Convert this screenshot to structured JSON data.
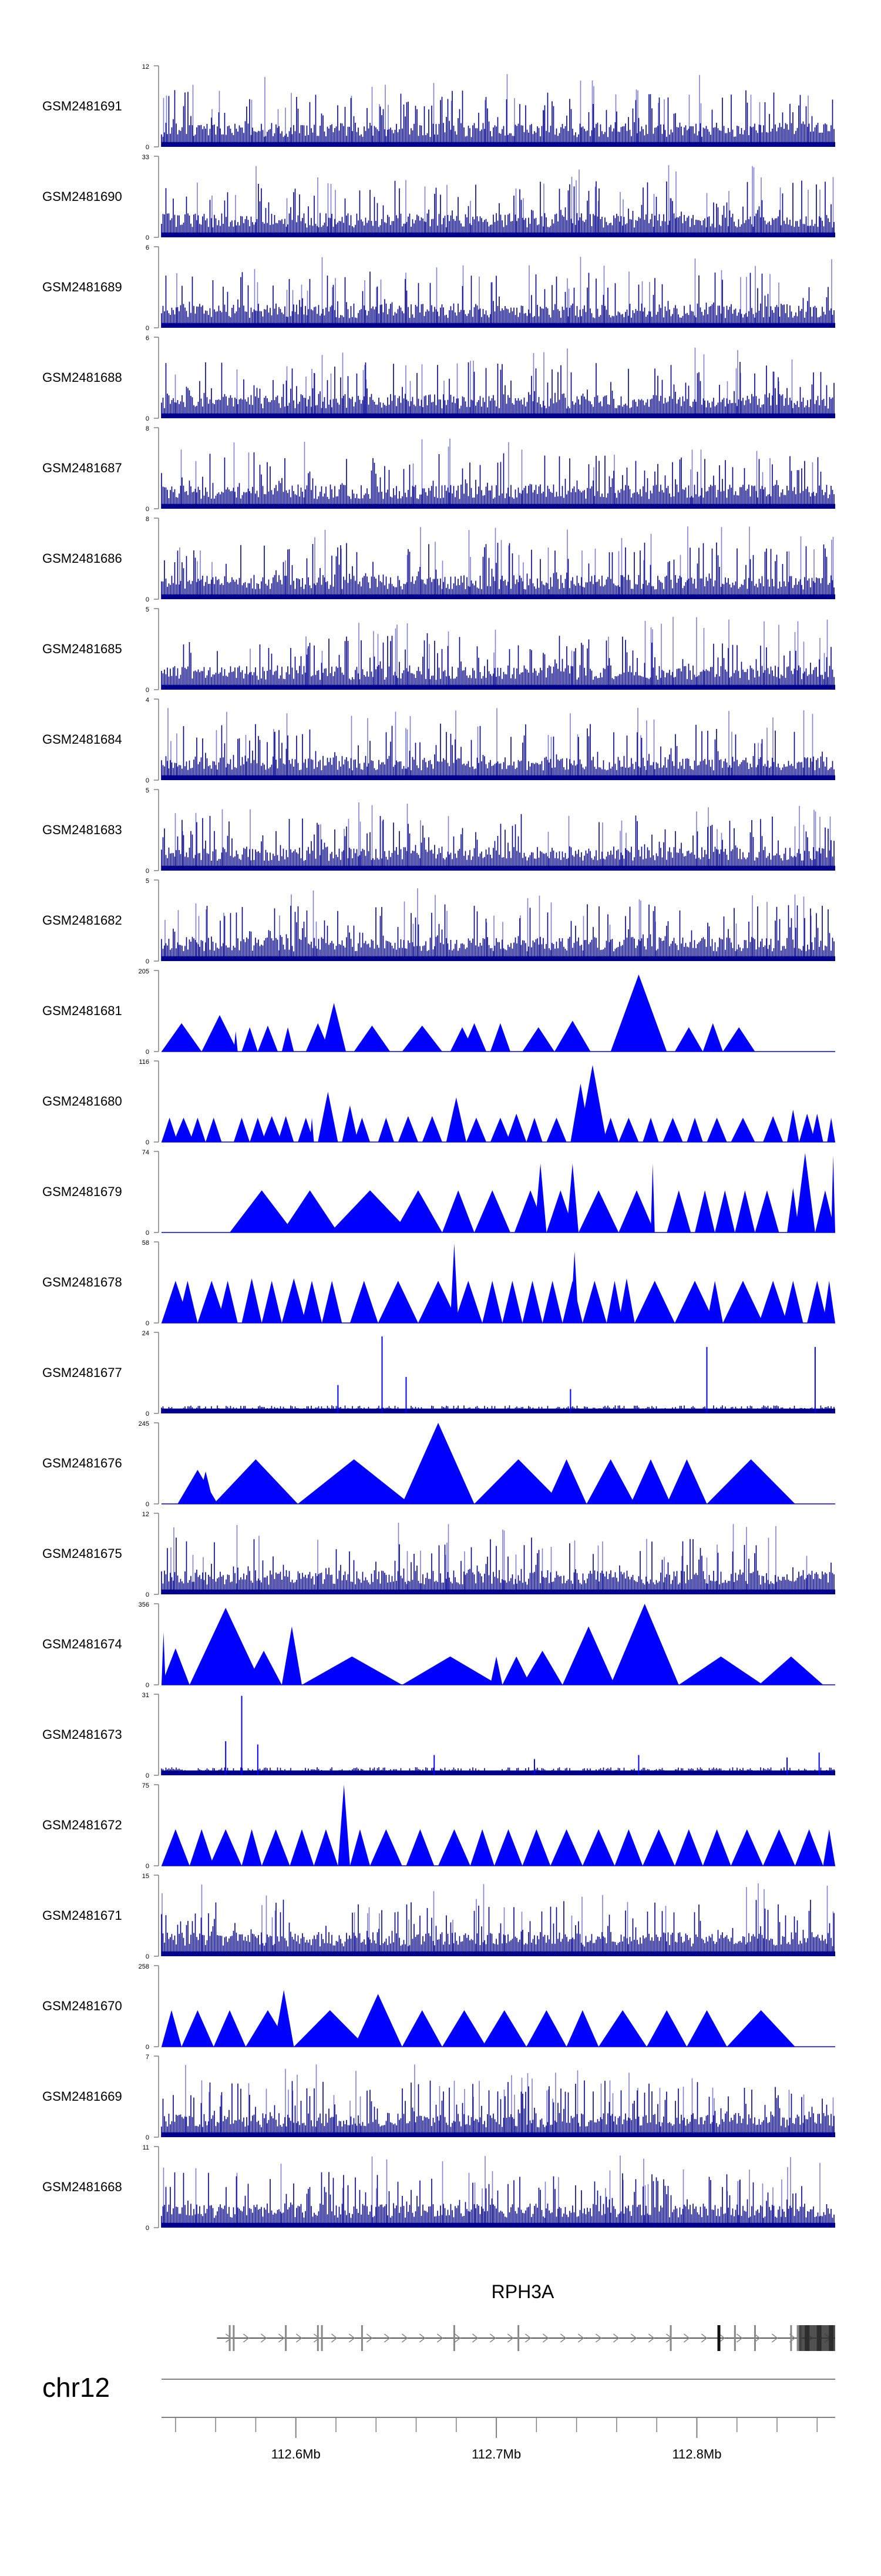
{
  "chart_data": {
    "type": "area",
    "title": "",
    "xlabel": "",
    "ylabel": "",
    "tracks": [
      {
        "name": "GSM2481691",
        "ymax": "12",
        "ymin": "0",
        "style": "spiky",
        "seed": 11
      },
      {
        "name": "GSM2481690",
        "ymax": "33",
        "ymin": "0",
        "style": "spiky",
        "seed": 12
      },
      {
        "name": "GSM2481689",
        "ymax": "6",
        "ymin": "0",
        "style": "spiky",
        "seed": 13
      },
      {
        "name": "GSM2481688",
        "ymax": "6",
        "ymin": "0",
        "style": "spiky",
        "seed": 14
      },
      {
        "name": "GSM2481687",
        "ymax": "8",
        "ymin": "0",
        "style": "spiky",
        "seed": 15
      },
      {
        "name": "GSM2481686",
        "ymax": "8",
        "ymin": "0",
        "style": "spiky",
        "seed": 16
      },
      {
        "name": "GSM2481685",
        "ymax": "5",
        "ymin": "0",
        "style": "spiky",
        "seed": 17
      },
      {
        "name": "GSM2481684",
        "ymax": "4",
        "ymin": "0",
        "style": "spiky",
        "seed": 18
      },
      {
        "name": "GSM2481683",
        "ymax": "5",
        "ymin": "0",
        "style": "spiky",
        "seed": 19
      },
      {
        "name": "GSM2481682",
        "ymax": "5",
        "ymin": "0",
        "style": "spiky",
        "seed": 20
      },
      {
        "name": "GSM2481681",
        "ymax": "205",
        "ymin": "0",
        "style": "peaks",
        "peaks": [
          [
            112.533,
            112.553,
            0.35
          ],
          [
            112.553,
            112.571,
            0.45
          ],
          [
            112.569,
            112.571,
            0.25
          ],
          [
            112.573,
            112.581,
            0.3
          ],
          [
            112.581,
            112.591,
            0.32
          ],
          [
            112.593,
            112.599,
            0.3
          ],
          [
            112.605,
            112.617,
            0.35
          ],
          [
            112.613,
            112.625,
            0.6
          ],
          [
            112.629,
            112.647,
            0.32
          ],
          [
            112.653,
            112.673,
            0.32
          ],
          [
            112.677,
            112.689,
            0.3
          ],
          [
            112.683,
            112.695,
            0.35
          ],
          [
            112.697,
            112.707,
            0.35
          ],
          [
            112.713,
            112.729,
            0.3
          ],
          [
            112.729,
            112.747,
            0.38
          ],
          [
            112.757,
            112.785,
            0.95
          ],
          [
            112.789,
            112.803,
            0.3
          ],
          [
            112.803,
            112.813,
            0.35
          ],
          [
            112.813,
            112.829,
            0.3
          ]
        ]
      },
      {
        "name": "GSM2481680",
        "ymax": "116",
        "ymin": "0",
        "style": "peaks",
        "peaks": [
          [
            112.533,
            112.541,
            0.3
          ],
          [
            112.539,
            112.549,
            0.3
          ],
          [
            112.547,
            112.555,
            0.3
          ],
          [
            112.555,
            112.563,
            0.3
          ],
          [
            112.569,
            112.577,
            0.3
          ],
          [
            112.577,
            112.585,
            0.3
          ],
          [
            112.583,
            112.593,
            0.32
          ],
          [
            112.591,
            112.599,
            0.32
          ],
          [
            112.601,
            112.609,
            0.3
          ],
          [
            112.607,
            112.609,
            0.3
          ],
          [
            112.611,
            112.621,
            0.62
          ],
          [
            112.623,
            112.631,
            0.45
          ],
          [
            112.629,
            112.637,
            0.3
          ],
          [
            112.641,
            112.649,
            0.3
          ],
          [
            112.651,
            112.661,
            0.32
          ],
          [
            112.663,
            112.673,
            0.32
          ],
          [
            112.675,
            112.685,
            0.55
          ],
          [
            112.685,
            112.695,
            0.3
          ],
          [
            112.697,
            112.707,
            0.3
          ],
          [
            112.705,
            112.715,
            0.35
          ],
          [
            112.715,
            112.723,
            0.3
          ],
          [
            112.725,
            112.735,
            0.3
          ],
          [
            112.737,
            112.747,
            0.72
          ],
          [
            112.741,
            112.755,
            0.95
          ],
          [
            112.753,
            112.761,
            0.3
          ],
          [
            112.761,
            112.771,
            0.3
          ],
          [
            112.773,
            112.781,
            0.3
          ],
          [
            112.783,
            112.793,
            0.3
          ],
          [
            112.795,
            112.803,
            0.3
          ],
          [
            112.805,
            112.815,
            0.3
          ],
          [
            112.817,
            112.829,
            0.3
          ],
          [
            112.833,
            112.843,
            0.32
          ],
          [
            112.845,
            112.851,
            0.4
          ],
          [
            112.851,
            112.859,
            0.35
          ],
          [
            112.857,
            112.863,
            0.35
          ],
          [
            112.865,
            112.869,
            0.3
          ]
        ]
      },
      {
        "name": "GSM2481679",
        "ymax": "74",
        "ymin": "0",
        "style": "peaks",
        "peaks": [
          [
            112.567,
            112.599,
            0.52
          ],
          [
            112.593,
            112.621,
            0.52
          ],
          [
            112.617,
            112.657,
            0.52
          ],
          [
            112.649,
            112.673,
            0.52
          ],
          [
            112.673,
            112.689,
            0.52
          ],
          [
            112.689,
            112.707,
            0.52
          ],
          [
            112.709,
            112.725,
            0.52
          ],
          [
            112.719,
            112.725,
            0.85
          ],
          [
            112.725,
            112.739,
            0.52
          ],
          [
            112.735,
            112.741,
            0.85
          ],
          [
            112.741,
            112.761,
            0.52
          ],
          [
            112.761,
            112.779,
            0.52
          ],
          [
            112.777,
            112.779,
            0.85
          ],
          [
            112.785,
            112.797,
            0.52
          ],
          [
            112.799,
            112.809,
            0.52
          ],
          [
            112.809,
            112.819,
            0.52
          ],
          [
            112.819,
            112.829,
            0.52
          ],
          [
            112.829,
            112.841,
            0.52
          ],
          [
            112.845,
            112.851,
            0.55
          ],
          [
            112.849,
            112.859,
            0.98
          ],
          [
            112.859,
            112.869,
            0.52
          ],
          [
            112.867,
            112.869,
            0.95
          ]
        ]
      },
      {
        "name": "GSM2481678",
        "ymax": "58",
        "ymin": "0",
        "style": "peaks",
        "peaks": [
          [
            112.533,
            112.547,
            0.52
          ],
          [
            112.541,
            112.551,
            0.52
          ],
          [
            112.551,
            112.565,
            0.52
          ],
          [
            112.561,
            112.571,
            0.52
          ],
          [
            112.573,
            112.583,
            0.55
          ],
          [
            112.583,
            112.593,
            0.52
          ],
          [
            112.593,
            112.605,
            0.55
          ],
          [
            112.603,
            112.613,
            0.52
          ],
          [
            112.613,
            112.623,
            0.52
          ],
          [
            112.627,
            112.641,
            0.52
          ],
          [
            112.641,
            112.661,
            0.52
          ],
          [
            112.661,
            112.681,
            0.52
          ],
          [
            112.677,
            112.681,
            0.98
          ],
          [
            112.679,
            112.693,
            0.52
          ],
          [
            112.693,
            112.703,
            0.52
          ],
          [
            112.703,
            112.713,
            0.52
          ],
          [
            112.713,
            112.723,
            0.52
          ],
          [
            112.723,
            112.733,
            0.52
          ],
          [
            112.733,
            112.743,
            0.52
          ],
          [
            112.737,
            112.741,
            0.88
          ],
          [
            112.743,
            112.755,
            0.52
          ],
          [
            112.755,
            112.763,
            0.52
          ],
          [
            112.761,
            112.769,
            0.55
          ],
          [
            112.769,
            112.789,
            0.52
          ],
          [
            112.789,
            112.809,
            0.52
          ],
          [
            112.805,
            112.813,
            0.52
          ],
          [
            112.813,
            112.833,
            0.52
          ],
          [
            112.831,
            112.845,
            0.52
          ],
          [
            112.843,
            112.853,
            0.52
          ],
          [
            112.855,
            112.865,
            0.52
          ],
          [
            112.863,
            112.869,
            0.52
          ]
        ]
      },
      {
        "name": "GSM2481677",
        "ymax": "24",
        "ymin": "0",
        "style": "sparse",
        "seed": 31,
        "spikes": [
          [
            112.643,
            0.95
          ],
          [
            112.655,
            0.45
          ],
          [
            112.621,
            0.35
          ],
          [
            112.805,
            0.82
          ],
          [
            112.859,
            0.82
          ],
          [
            112.737,
            0.3
          ]
        ]
      },
      {
        "name": "GSM2481676",
        "ymax": "245",
        "ymin": "0",
        "style": "peaks",
        "peaks": [
          [
            112.541,
            112.561,
            0.42
          ],
          [
            112.551,
            112.559,
            0.4
          ],
          [
            112.559,
            112.601,
            0.55
          ],
          [
            112.601,
            112.657,
            0.55
          ],
          [
            112.653,
            112.689,
            1.0
          ],
          [
            112.689,
            112.733,
            0.55
          ],
          [
            112.725,
            112.745,
            0.55
          ],
          [
            112.745,
            112.769,
            0.55
          ],
          [
            112.767,
            112.787,
            0.55
          ],
          [
            112.785,
            112.805,
            0.55
          ],
          [
            112.805,
            112.849,
            0.55
          ]
        ]
      },
      {
        "name": "GSM2481675",
        "ymax": "12",
        "ymin": "0",
        "style": "spiky",
        "seed": 21
      },
      {
        "name": "GSM2481674",
        "ymax": "356",
        "ymin": "0",
        "style": "peaks",
        "peaks": [
          [
            112.533,
            112.547,
            0.45
          ],
          [
            112.533,
            112.535,
            0.65
          ],
          [
            112.547,
            112.583,
            0.95
          ],
          [
            112.575,
            112.593,
            0.42
          ],
          [
            112.593,
            112.603,
            0.72
          ],
          [
            112.603,
            112.653,
            0.35
          ],
          [
            112.653,
            112.701,
            0.35
          ],
          [
            112.697,
            112.703,
            0.35
          ],
          [
            112.703,
            112.717,
            0.35
          ],
          [
            112.713,
            112.733,
            0.42
          ],
          [
            112.733,
            112.759,
            0.72
          ],
          [
            112.757,
            112.791,
            1.0
          ],
          [
            112.791,
            112.833,
            0.35
          ],
          [
            112.831,
            112.863,
            0.35
          ]
        ]
      },
      {
        "name": "GSM2481673",
        "ymax": "31",
        "ymin": "0",
        "style": "sparse",
        "seed": 33,
        "spikes": [
          [
            112.573,
            0.98
          ],
          [
            112.565,
            0.42
          ],
          [
            112.581,
            0.38
          ],
          [
            112.669,
            0.25
          ],
          [
            112.719,
            0.2
          ],
          [
            112.771,
            0.25
          ],
          [
            112.845,
            0.22
          ],
          [
            112.861,
            0.28
          ]
        ]
      },
      {
        "name": "GSM2481672",
        "ymax": "75",
        "ymin": "0",
        "style": "peaks",
        "peaks": [
          [
            112.533,
            112.547,
            0.45
          ],
          [
            112.547,
            112.559,
            0.45
          ],
          [
            112.557,
            112.573,
            0.45
          ],
          [
            112.573,
            112.583,
            0.45
          ],
          [
            112.583,
            112.597,
            0.45
          ],
          [
            112.597,
            112.609,
            0.45
          ],
          [
            112.609,
            112.621,
            0.45
          ],
          [
            112.621,
            112.627,
            1.0
          ],
          [
            112.627,
            112.637,
            0.45
          ],
          [
            112.637,
            112.653,
            0.45
          ],
          [
            112.655,
            112.669,
            0.45
          ],
          [
            112.671,
            112.687,
            0.45
          ],
          [
            112.687,
            112.699,
            0.45
          ],
          [
            112.699,
            112.713,
            0.45
          ],
          [
            112.713,
            112.727,
            0.45
          ],
          [
            112.727,
            112.743,
            0.45
          ],
          [
            112.743,
            112.759,
            0.45
          ],
          [
            112.759,
            112.773,
            0.45
          ],
          [
            112.773,
            112.789,
            0.45
          ],
          [
            112.789,
            112.803,
            0.45
          ],
          [
            112.803,
            112.817,
            0.45
          ],
          [
            112.817,
            112.833,
            0.45
          ],
          [
            112.833,
            112.849,
            0.45
          ],
          [
            112.849,
            112.863,
            0.45
          ],
          [
            112.863,
            112.869,
            0.45
          ]
        ]
      },
      {
        "name": "GSM2481671",
        "ymax": "15",
        "ymin": "0",
        "style": "spiky",
        "seed": 22
      },
      {
        "name": "GSM2481670",
        "ymax": "258",
        "ymin": "0",
        "style": "peaks",
        "peaks": [
          [
            112.533,
            112.543,
            0.45
          ],
          [
            112.543,
            112.559,
            0.45
          ],
          [
            112.559,
            112.575,
            0.45
          ],
          [
            112.575,
            112.597,
            0.45
          ],
          [
            112.589,
            112.599,
            0.7
          ],
          [
            112.599,
            112.635,
            0.45
          ],
          [
            112.629,
            112.653,
            0.65
          ],
          [
            112.653,
            112.673,
            0.45
          ],
          [
            112.673,
            112.695,
            0.45
          ],
          [
            112.693,
            112.715,
            0.45
          ],
          [
            112.715,
            112.735,
            0.45
          ],
          [
            112.735,
            112.751,
            0.45
          ],
          [
            112.751,
            112.775,
            0.45
          ],
          [
            112.775,
            112.795,
            0.45
          ],
          [
            112.795,
            112.815,
            0.45
          ],
          [
            112.815,
            112.849,
            0.45
          ]
        ]
      },
      {
        "name": "GSM2481669",
        "ymax": "7",
        "ymin": "0",
        "style": "spiky",
        "seed": 23
      },
      {
        "name": "GSM2481668",
        "ymax": "11",
        "ymin": "0",
        "style": "spiky",
        "seed": 24
      }
    ],
    "gene": {
      "name": "RPH3A",
      "start": 112.563,
      "end": 112.869,
      "introns": "arrows",
      "exons": [
        112.567,
        112.569,
        112.595,
        112.611,
        112.613,
        112.633,
        112.679,
        112.711,
        112.787,
        112.811,
        112.819,
        112.829,
        112.847,
        112.851,
        112.855,
        112.861,
        112.867
      ]
    },
    "axis": {
      "chromosome": "chr12",
      "range": [
        112.533,
        112.869
      ],
      "ticks": [
        {
          "pos": 112.6,
          "label": "112.6Mb"
        },
        {
          "pos": 112.7,
          "label": "112.7Mb"
        },
        {
          "pos": 112.8,
          "label": "112.8Mb"
        }
      ],
      "minor_step": 0.02
    },
    "colors": {
      "signal": "#0000ff",
      "signal_dark": "#00008b",
      "signal_light": "#8080d8",
      "axis": "#808080",
      "text": "#000000",
      "gene": "#555555"
    }
  }
}
